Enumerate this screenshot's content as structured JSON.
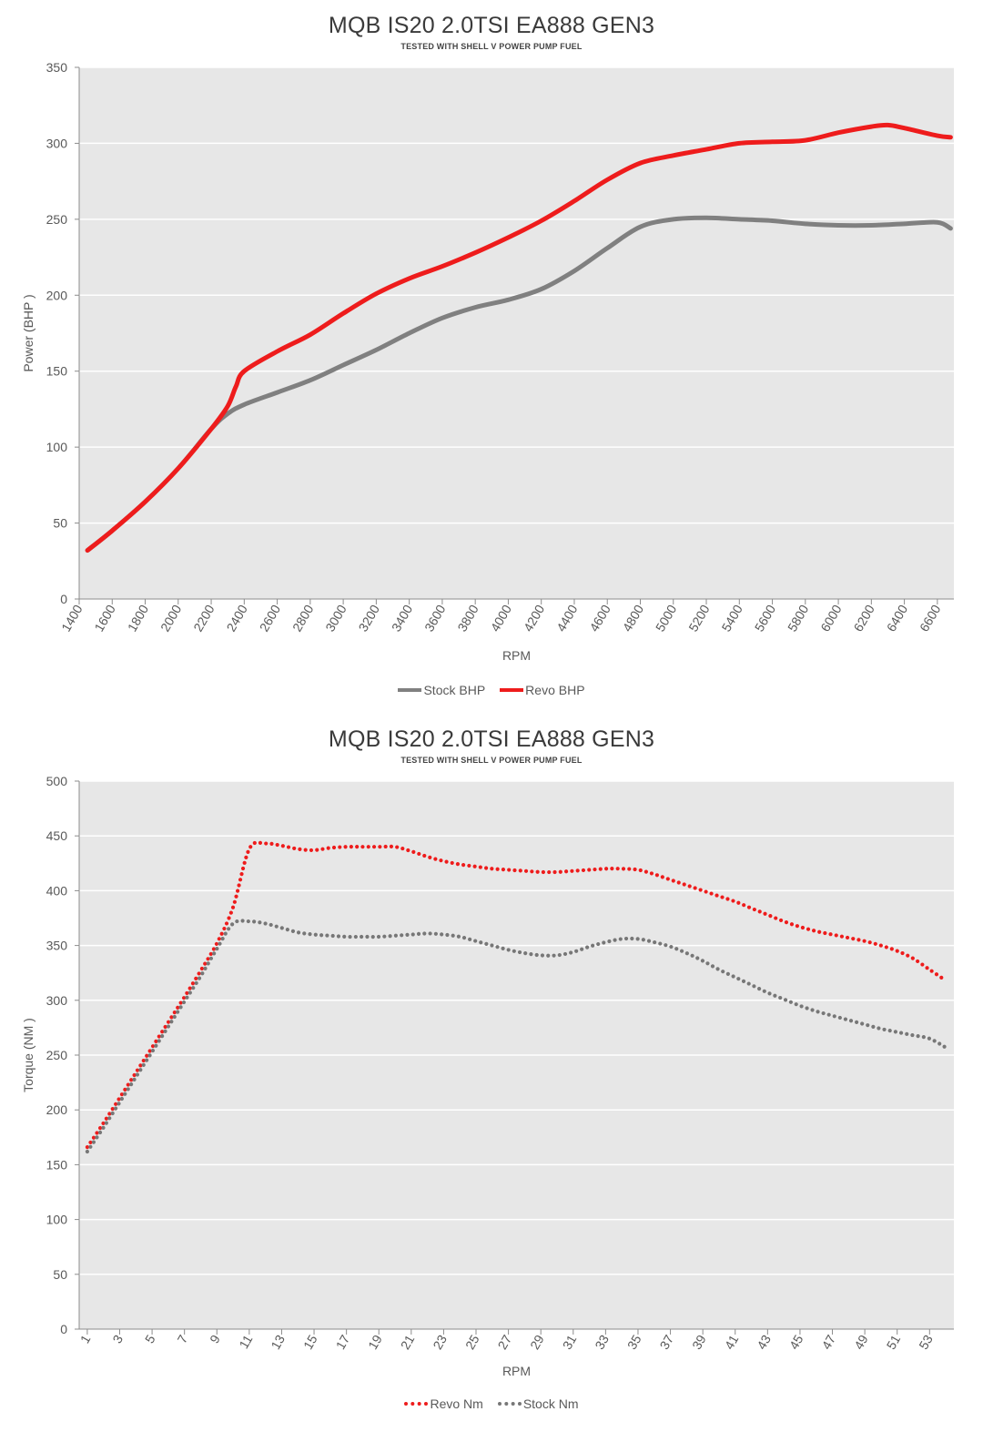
{
  "chart_data": [
    {
      "type": "line",
      "title": "MQB IS20 2.0TSI EA888  GEN3",
      "subtitle": "TESTED WITH SHELL V POWER PUMP FUEL",
      "xlabel": "RPM",
      "ylabel": "Power (BHP )",
      "ylim": [
        0,
        350
      ],
      "yticks": [
        0,
        50,
        100,
        150,
        200,
        250,
        300,
        350
      ],
      "xlim": [
        1400,
        6700
      ],
      "xticks": [
        1400,
        1600,
        1800,
        2000,
        2200,
        2400,
        2600,
        2800,
        3000,
        3200,
        3400,
        3600,
        3800,
        4000,
        4200,
        4400,
        4600,
        4800,
        5000,
        5200,
        5400,
        5600,
        5800,
        6000,
        6200,
        6400,
        6600
      ],
      "grid": "horizontal",
      "legend": "bottom",
      "series": [
        {
          "name": "Stock BHP",
          "color": "#808080",
          "style": "solid",
          "x": [
            1450,
            1600,
            1800,
            2000,
            2200,
            2300,
            2400,
            2600,
            2800,
            3000,
            3200,
            3400,
            3600,
            3800,
            4000,
            4200,
            4400,
            4600,
            4800,
            5000,
            5200,
            5400,
            5600,
            5800,
            6000,
            6200,
            6400,
            6600,
            6680
          ],
          "y": [
            32,
            45,
            64,
            86,
            112,
            122,
            128,
            136,
            144,
            154,
            164,
            175,
            185,
            192,
            197,
            204,
            216,
            231,
            245,
            250,
            251,
            250,
            249,
            247,
            246,
            246,
            247,
            248,
            244
          ]
        },
        {
          "name": "Revo BHP",
          "color": "#ee1c1c",
          "style": "solid",
          "x": [
            1450,
            1600,
            1800,
            2000,
            2200,
            2300,
            2350,
            2400,
            2600,
            2800,
            3000,
            3200,
            3400,
            3600,
            3800,
            4000,
            4200,
            4400,
            4600,
            4800,
            5000,
            5200,
            5400,
            5600,
            5800,
            6000,
            6200,
            6300,
            6400,
            6600,
            6680
          ],
          "y": [
            32,
            45,
            64,
            86,
            112,
            127,
            140,
            150,
            163,
            174,
            188,
            201,
            211,
            219,
            228,
            238,
            249,
            262,
            276,
            287,
            292,
            296,
            300,
            301,
            302,
            307,
            311,
            312,
            310,
            305,
            304
          ]
        }
      ]
    },
    {
      "type": "line",
      "title": "MQB IS20 2.0TSI EA888  GEN3",
      "subtitle": "TESTED WITH SHELL V POWER PUMP FUEL",
      "xlabel": "RPM",
      "ylabel": "Torque (NM )",
      "ylim": [
        0,
        500
      ],
      "yticks": [
        0,
        50,
        100,
        150,
        200,
        250,
        300,
        350,
        400,
        450,
        500
      ],
      "xlim": [
        0.5,
        54.5
      ],
      "xticks": [
        1,
        3,
        5,
        7,
        9,
        11,
        13,
        15,
        17,
        19,
        21,
        23,
        25,
        27,
        29,
        31,
        33,
        35,
        37,
        39,
        41,
        43,
        45,
        47,
        49,
        51,
        53
      ],
      "grid": "horizontal",
      "legend": "bottom",
      "series": [
        {
          "name": "Revo Nm",
          "color": "#ee1c1c",
          "style": "dotted",
          "x": [
            1,
            2,
            3,
            4,
            5,
            6,
            7,
            8,
            9,
            10,
            11,
            12,
            13,
            14,
            15,
            16,
            17,
            18,
            19,
            20,
            21,
            22,
            23,
            24,
            25,
            26,
            27,
            28,
            29,
            30,
            31,
            32,
            33,
            34,
            35,
            36,
            37,
            38,
            39,
            40,
            41,
            42,
            43,
            44,
            45,
            46,
            47,
            48,
            49,
            50,
            51,
            52,
            53,
            54
          ],
          "y": [
            166,
            188,
            211,
            234,
            257,
            280,
            303,
            327,
            352,
            385,
            438,
            443,
            441,
            438,
            437,
            439,
            440,
            440,
            440,
            440,
            436,
            431,
            427,
            424,
            422,
            420,
            419,
            418,
            417,
            417,
            418,
            419,
            420,
            420,
            419,
            415,
            410,
            405,
            400,
            395,
            390,
            384,
            378,
            372,
            367,
            363,
            360,
            357,
            354,
            350,
            345,
            338,
            328,
            318
          ]
        },
        {
          "name": "Stock Nm",
          "color": "#777777",
          "style": "dotted",
          "x": [
            1,
            2,
            3,
            4,
            5,
            6,
            7,
            8,
            9,
            10,
            11,
            12,
            13,
            14,
            15,
            16,
            17,
            18,
            19,
            20,
            21,
            22,
            23,
            24,
            25,
            26,
            27,
            28,
            29,
            30,
            31,
            32,
            33,
            34,
            35,
            36,
            37,
            38,
            39,
            40,
            41,
            42,
            43,
            44,
            45,
            46,
            47,
            48,
            49,
            50,
            51,
            52,
            53,
            54
          ],
          "y": [
            162,
            184,
            207,
            230,
            253,
            276,
            299,
            322,
            347,
            370,
            372,
            370,
            366,
            362,
            360,
            359,
            358,
            358,
            358,
            359,
            360,
            361,
            360,
            358,
            354,
            350,
            346,
            343,
            341,
            341,
            344,
            349,
            353,
            356,
            356,
            353,
            349,
            343,
            336,
            328,
            321,
            314,
            307,
            301,
            295,
            290,
            286,
            282,
            278,
            274,
            271,
            268,
            265,
            257
          ]
        }
      ]
    }
  ]
}
